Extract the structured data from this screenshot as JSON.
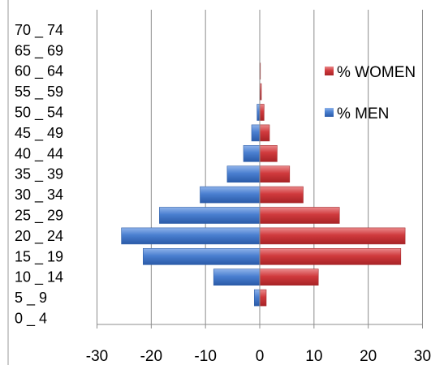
{
  "chart_data": {
    "type": "bar",
    "orientation": "horizontal",
    "categories": [
      "0 _ 4",
      "5 _ 9",
      "10 _ 14",
      "15 _ 19",
      "20 _ 24",
      "25 _ 29",
      "30 _ 34",
      "35 _ 39",
      "40 _ 44",
      "45 _ 49",
      "50 _ 54",
      "55 _ 59",
      "60 _ 64",
      "65 _ 69",
      "70 _ 74"
    ],
    "series": [
      {
        "name": "% MEN",
        "color": "#4a7fd0",
        "values": [
          0,
          -1,
          -8.5,
          -21.5,
          -25.5,
          -18.5,
          -11,
          -6,
          -3,
          -1.5,
          -0.5,
          0,
          0,
          0,
          0
        ]
      },
      {
        "name": "% WOMEN",
        "color": "#d03a3d",
        "values": [
          0,
          1.2,
          10.8,
          26,
          26.8,
          14.7,
          8,
          5.5,
          3.2,
          1.8,
          0.8,
          0.3,
          0.1,
          0,
          0
        ]
      }
    ],
    "xticks": [
      "-30",
      "-20",
      "-10",
      "0",
      "10",
      "20",
      "30"
    ],
    "xlim": [
      -30,
      30
    ],
    "grid": "vertical",
    "legend": "right",
    "title": "",
    "xlabel": "",
    "ylabel": ""
  }
}
